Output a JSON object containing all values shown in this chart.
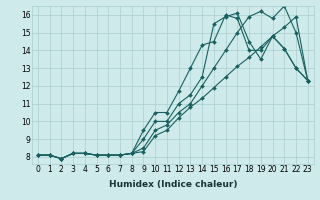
{
  "xlabel": "Humidex (Indice chaleur)",
  "background_color": "#ceeaea",
  "grid_color": "#aacece",
  "line_color": "#1a6060",
  "markersize": 2.0,
  "linewidth": 0.8,
  "series": [
    {
      "x": [
        0,
        1,
        2,
        3,
        4,
        5,
        6,
        7,
        8,
        9,
        10,
        11,
        12,
        13,
        14,
        15,
        16,
        17,
        18,
        19,
        20,
        21,
        22,
        23
      ],
      "y": [
        8.1,
        8.1,
        7.9,
        8.2,
        8.2,
        8.1,
        8.1,
        8.1,
        8.2,
        9.5,
        10.5,
        10.5,
        11.7,
        13.0,
        14.3,
        14.5,
        16.0,
        15.8,
        14.0,
        14.0,
        14.8,
        14.1,
        13.0,
        12.3
      ]
    },
    {
      "x": [
        0,
        1,
        2,
        3,
        4,
        5,
        6,
        7,
        8,
        9,
        10,
        11,
        12,
        13,
        14,
        15,
        16,
        17,
        18,
        19,
        20,
        21,
        22,
        23
      ],
      "y": [
        8.1,
        8.1,
        7.9,
        8.2,
        8.2,
        8.1,
        8.1,
        8.1,
        8.2,
        9.0,
        10.0,
        10.0,
        11.0,
        11.5,
        12.5,
        15.5,
        15.9,
        16.1,
        14.5,
        13.5,
        14.8,
        14.1,
        13.0,
        12.3
      ]
    },
    {
      "x": [
        0,
        1,
        2,
        3,
        4,
        5,
        6,
        7,
        8,
        9,
        10,
        11,
        12,
        13,
        14,
        15,
        16,
        17,
        18,
        19,
        20,
        21,
        22,
        23
      ],
      "y": [
        8.1,
        8.1,
        7.9,
        8.2,
        8.2,
        8.1,
        8.1,
        8.1,
        8.2,
        8.5,
        9.5,
        9.8,
        10.5,
        11.0,
        12.0,
        13.0,
        14.0,
        15.0,
        15.9,
        16.2,
        15.8,
        16.5,
        15.0,
        12.3
      ]
    },
    {
      "x": [
        0,
        1,
        2,
        3,
        4,
        5,
        6,
        7,
        8,
        9,
        10,
        11,
        12,
        13,
        14,
        15,
        16,
        17,
        18,
        19,
        20,
        21,
        22,
        23
      ],
      "y": [
        8.1,
        8.1,
        7.9,
        8.2,
        8.2,
        8.1,
        8.1,
        8.1,
        8.2,
        8.3,
        9.2,
        9.5,
        10.2,
        10.8,
        11.3,
        11.9,
        12.5,
        13.1,
        13.6,
        14.2,
        14.8,
        15.3,
        15.9,
        12.3
      ]
    }
  ],
  "ylim": [
    7.6,
    16.5
  ],
  "xlim": [
    -0.5,
    23.5
  ],
  "yticks": [
    8,
    9,
    10,
    11,
    12,
    13,
    14,
    15,
    16
  ],
  "xticks": [
    0,
    1,
    2,
    3,
    4,
    5,
    6,
    7,
    8,
    9,
    10,
    11,
    12,
    13,
    14,
    15,
    16,
    17,
    18,
    19,
    20,
    21,
    22,
    23
  ],
  "tick_fontsize": 5.5,
  "xlabel_fontsize": 6.5
}
